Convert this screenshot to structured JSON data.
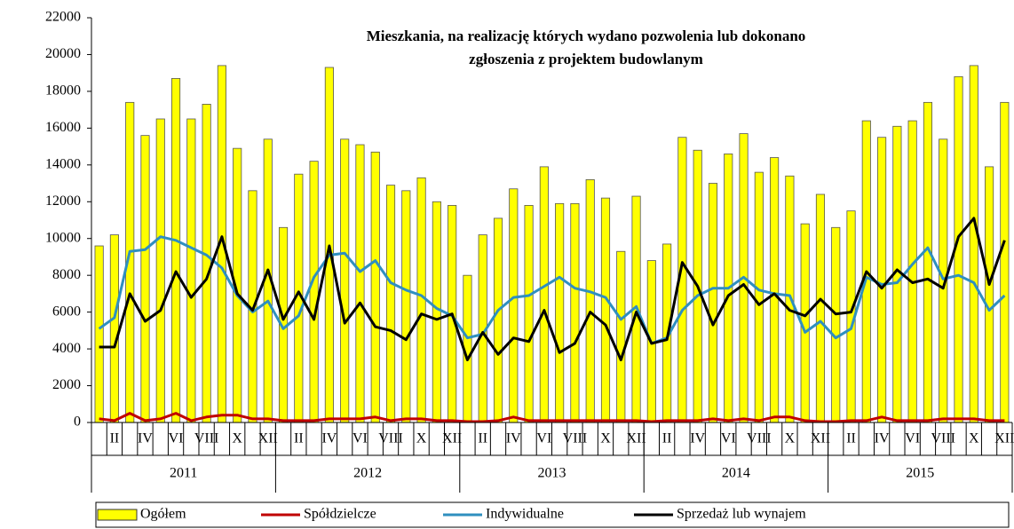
{
  "chart_data": {
    "type": "bar_line",
    "title_lines": [
      "Mieszkania, na realizację których wydano pozwolenia lub dokonano",
      "zgłoszenia z projektem budowlanym"
    ],
    "categories": [
      null,
      "II",
      null,
      "IV",
      null,
      "VI",
      null,
      "VIII",
      null,
      "X",
      null,
      "XII",
      null,
      "II",
      null,
      "IV",
      null,
      "VI",
      null,
      "VIII",
      null,
      "X",
      null,
      "XII",
      null,
      "II",
      null,
      "IV",
      null,
      "VI",
      null,
      "VIII",
      null,
      "X",
      null,
      "XII",
      null,
      "II",
      null,
      "IV",
      null,
      "VI",
      null,
      "VIII",
      null,
      "X",
      null,
      "XII",
      null,
      "II",
      null,
      "IV",
      null,
      "VI",
      null,
      "VIII",
      null,
      "X",
      null,
      "XII"
    ],
    "groups": [
      "2011",
      "2012",
      "2013",
      "2014",
      "2015"
    ],
    "series": [
      {
        "name": "Ogółem",
        "kind": "bar",
        "color": "#ffff00",
        "values": [
          9600,
          10200,
          17400,
          15600,
          16500,
          18700,
          16500,
          17300,
          19400,
          14900,
          12600,
          15400,
          10600,
          13500,
          14200,
          19300,
          15400,
          15100,
          14700,
          12900,
          12600,
          13300,
          12000,
          11800,
          8000,
          10200,
          11100,
          12700,
          11800,
          13900,
          11900,
          11900,
          13200,
          12200,
          9300,
          12300,
          8800,
          9700,
          15500,
          14800,
          13000,
          14600,
          15700,
          13600,
          14400,
          13400,
          10800,
          12400,
          10600,
          11500,
          16400,
          15500,
          16100,
          16400,
          17400,
          15400,
          18800,
          19400,
          13900,
          17400
        ]
      },
      {
        "name": "Spółdzielcze",
        "kind": "line",
        "color": "#c00000",
        "values": [
          200,
          100,
          500,
          100,
          200,
          500,
          100,
          300,
          400,
          400,
          200,
          200,
          100,
          100,
          100,
          200,
          200,
          200,
          300,
          100,
          200,
          200,
          100,
          100,
          50,
          50,
          100,
          300,
          100,
          100,
          100,
          100,
          100,
          100,
          100,
          100,
          50,
          100,
          100,
          100,
          200,
          100,
          200,
          100,
          300,
          300,
          100,
          50,
          50,
          100,
          100,
          300,
          100,
          100,
          100,
          200,
          200,
          200,
          100,
          100
        ]
      },
      {
        "name": "Indywidualne",
        "kind": "line",
        "color": "#2f8fbf",
        "values": [
          5100,
          5700,
          9300,
          9400,
          10100,
          9900,
          9500,
          9100,
          8400,
          6900,
          6000,
          6600,
          5100,
          5800,
          7900,
          9100,
          9200,
          8200,
          8800,
          7600,
          7200,
          6900,
          6200,
          5800,
          4600,
          4800,
          6100,
          6800,
          6900,
          7400,
          7900,
          7300,
          7100,
          6800,
          5600,
          6300,
          4300,
          4600,
          6100,
          6900,
          7300,
          7300,
          7900,
          7200,
          7000,
          6900,
          4900,
          5500,
          4600,
          5100,
          7900,
          7500,
          7600,
          8600,
          9500,
          7800,
          8000,
          7600,
          6100,
          6900
        ]
      },
      {
        "name": "Sprzedaż lub wynajem",
        "kind": "line",
        "color": "#000000",
        "values": [
          4100,
          4100,
          7000,
          5500,
          6100,
          8200,
          6800,
          7800,
          10100,
          7000,
          6100,
          8300,
          5600,
          7100,
          5600,
          9600,
          5400,
          6500,
          5200,
          5000,
          4500,
          5900,
          5600,
          5900,
          3400,
          4900,
          3700,
          4600,
          4400,
          6100,
          3800,
          4300,
          6000,
          5300,
          3400,
          6000,
          4300,
          4500,
          8700,
          7400,
          5300,
          6900,
          7500,
          6400,
          7000,
          6100,
          5800,
          6700,
          5900,
          6000,
          8200,
          7300,
          8300,
          7600,
          7800,
          7300,
          10100,
          11100,
          7500,
          9900
        ]
      }
    ],
    "ylim": [
      0,
      22000
    ],
    "yticks": [
      0,
      2000,
      4000,
      6000,
      8000,
      10000,
      12000,
      14000,
      16000,
      18000,
      20000,
      22000
    ],
    "grid": false,
    "legend": "bottom"
  }
}
